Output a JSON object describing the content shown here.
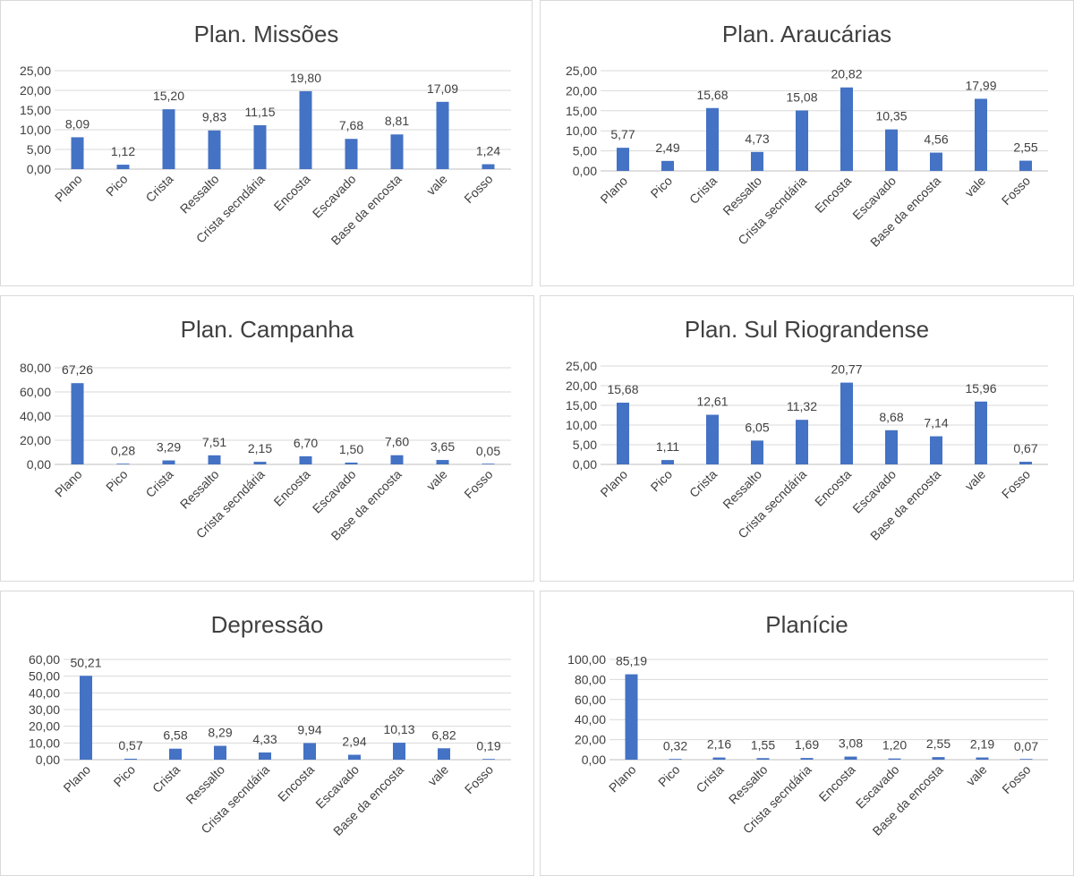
{
  "bar_color": "#4472C4",
  "chart_data": [
    {
      "type": "bar",
      "title": "Plan. Missões",
      "categories": [
        "Plano",
        "Pico",
        "Crista",
        "Ressalto",
        "Crista secndária",
        "Encosta",
        "Escavado",
        "Base da encosta",
        "vale",
        "Fosso"
      ],
      "values": [
        8.09,
        1.12,
        15.2,
        9.83,
        11.15,
        19.8,
        7.68,
        8.81,
        17.09,
        1.24
      ],
      "value_labels": [
        "8,09",
        "1,12",
        "15,20",
        "9,83",
        "11,15",
        "19,80",
        "7,68",
        "8,81",
        "17,09",
        "1,24"
      ],
      "ylim": [
        0,
        25
      ],
      "yticks": [
        "0,00",
        "5,00",
        "10,00",
        "15,00",
        "20,00",
        "25,00"
      ],
      "grid": true,
      "legend": "none"
    },
    {
      "type": "bar",
      "title": "Plan. Araucárias",
      "categories": [
        "Plano",
        "Pico",
        "Crista",
        "Ressalto",
        "Crista secndária",
        "Encosta",
        "Escavado",
        "Base da encosta",
        "vale",
        "Fosso"
      ],
      "values": [
        5.77,
        2.49,
        15.68,
        4.73,
        15.08,
        20.82,
        10.35,
        4.56,
        17.99,
        2.55
      ],
      "value_labels": [
        "5,77",
        "2,49",
        "15,68",
        "4,73",
        "15,08",
        "20,82",
        "10,35",
        "4,56",
        "17,99",
        "2,55"
      ],
      "ylim": [
        0,
        25
      ],
      "yticks": [
        "0,00",
        "5,00",
        "10,00",
        "15,00",
        "20,00",
        "25,00"
      ],
      "grid": true,
      "legend": "none"
    },
    {
      "type": "bar",
      "title": "Plan. Campanha",
      "categories": [
        "Plano",
        "Pico",
        "Crista",
        "Ressalto",
        "Crista secndária",
        "Encosta",
        "Escavado",
        "Base da encosta",
        "vale",
        "Fosso"
      ],
      "values": [
        67.26,
        0.28,
        3.29,
        7.51,
        2.15,
        6.7,
        1.5,
        7.6,
        3.65,
        0.05
      ],
      "value_labels": [
        "67,26",
        "0,28",
        "3,29",
        "7,51",
        "2,15",
        "6,70",
        "1,50",
        "7,60",
        "3,65",
        "0,05"
      ],
      "ylim": [
        0,
        80
      ],
      "yticks": [
        "0,00",
        "20,00",
        "40,00",
        "60,00",
        "80,00"
      ],
      "grid": true,
      "legend": "none"
    },
    {
      "type": "bar",
      "title": "Plan. Sul Riograndense",
      "categories": [
        "Plano",
        "Pico",
        "Crista",
        "Ressalto",
        "Crista secndária",
        "Encosta",
        "Escavado",
        "Base da encosta",
        "vale",
        "Fosso"
      ],
      "values": [
        15.68,
        1.11,
        12.61,
        6.05,
        11.32,
        20.77,
        8.68,
        7.14,
        15.96,
        0.67
      ],
      "value_labels": [
        "15,68",
        "1,11",
        "12,61",
        "6,05",
        "11,32",
        "20,77",
        "8,68",
        "7,14",
        "15,96",
        "0,67"
      ],
      "ylim": [
        0,
        25
      ],
      "yticks": [
        "0,00",
        "5,00",
        "10,00",
        "15,00",
        "20,00",
        "25,00"
      ],
      "grid": true,
      "legend": "none"
    },
    {
      "type": "bar",
      "title": "Depressão",
      "categories": [
        "Plano",
        "Pico",
        "Crista",
        "Ressalto",
        "Crista secndária",
        "Encosta",
        "Escavado",
        "Base da encosta",
        "vale",
        "Fosso"
      ],
      "values": [
        50.21,
        0.57,
        6.58,
        8.29,
        4.33,
        9.94,
        2.94,
        10.13,
        6.82,
        0.19
      ],
      "value_labels": [
        "50,21",
        "0,57",
        "6,58",
        "8,29",
        "4,33",
        "9,94",
        "2,94",
        "10,13",
        "6,82",
        "0,19"
      ],
      "ylim": [
        0,
        60
      ],
      "yticks": [
        "0,00",
        "10,00",
        "20,00",
        "30,00",
        "40,00",
        "50,00",
        "60,00"
      ],
      "grid": true,
      "legend": "none"
    },
    {
      "type": "bar",
      "title": "Planície",
      "categories": [
        "Plano",
        "Pico",
        "Crista",
        "Ressalto",
        "Crista secndária",
        "Encosta",
        "Escavado",
        "Base da encosta",
        "vale",
        "Fosso"
      ],
      "values": [
        85.19,
        0.32,
        2.16,
        1.55,
        1.69,
        3.08,
        1.2,
        2.55,
        2.19,
        0.07
      ],
      "value_labels": [
        "85,19",
        "0,32",
        "2,16",
        "1,55",
        "1,69",
        "3,08",
        "1,20",
        "2,55",
        "2,19",
        "0,07"
      ],
      "ylim": [
        0,
        100
      ],
      "yticks": [
        "0,00",
        "20,00",
        "40,00",
        "60,00",
        "80,00",
        "100,00"
      ],
      "grid": true,
      "legend": "none"
    }
  ]
}
